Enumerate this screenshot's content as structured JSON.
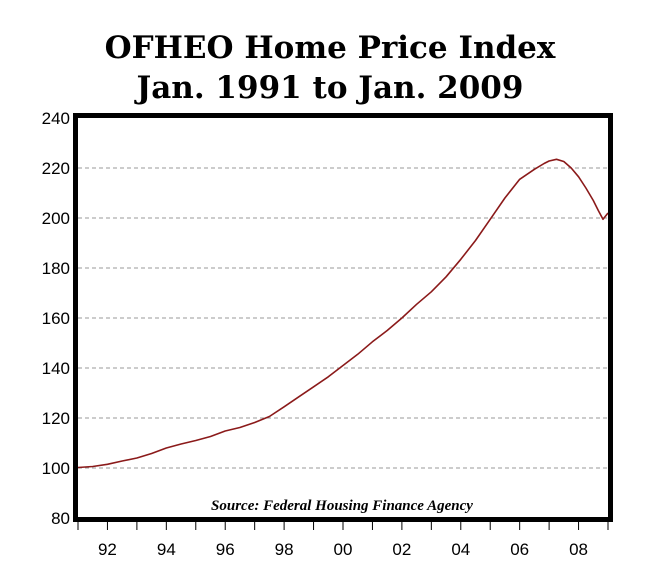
{
  "chart_data": {
    "type": "line",
    "title_lines": [
      "OFHEO Home Price Index",
      "Jan. 1991 to Jan. 2009"
    ],
    "annotation": "Source: Federal Housing Finance Agency",
    "xlim": [
      1991.0,
      2009.0
    ],
    "ylim": [
      80,
      240
    ],
    "y_ticks": [
      80,
      100,
      120,
      140,
      160,
      180,
      200,
      220,
      240
    ],
    "x_ticks": [
      {
        "value": 1992,
        "label": "92"
      },
      {
        "value": 1994,
        "label": "94"
      },
      {
        "value": 1996,
        "label": "96"
      },
      {
        "value": 1998,
        "label": "98"
      },
      {
        "value": 2000,
        "label": "00"
      },
      {
        "value": 2002,
        "label": "02"
      },
      {
        "value": 2004,
        "label": "04"
      },
      {
        "value": 2006,
        "label": "06"
      },
      {
        "value": 2008,
        "label": "08"
      }
    ],
    "grid": true,
    "series": [
      {
        "color": "#8b1a1a",
        "x": [
          1991.0,
          1991.5,
          1992.0,
          1992.5,
          1993.0,
          1993.5,
          1994.0,
          1994.5,
          1995.0,
          1995.5,
          1996.0,
          1996.5,
          1997.0,
          1997.5,
          1998.0,
          1998.5,
          1999.0,
          1999.5,
          2000.0,
          2000.5,
          2001.0,
          2001.5,
          2002.0,
          2002.5,
          2003.0,
          2003.5,
          2004.0,
          2004.5,
          2005.0,
          2005.5,
          2006.0,
          2006.5,
          2006.83,
          2007.0,
          2007.25,
          2007.5,
          2007.75,
          2008.0,
          2008.25,
          2008.5,
          2008.67,
          2008.83,
          2009.0
        ],
        "y": [
          100.2,
          100.6,
          101.5,
          102.8,
          104.0,
          105.8,
          108.0,
          109.6,
          111.0,
          112.6,
          114.8,
          116.2,
          118.2,
          120.6,
          124.5,
          128.5,
          132.5,
          136.5,
          141.0,
          145.5,
          150.5,
          155.0,
          160.0,
          165.5,
          170.5,
          176.5,
          183.5,
          191.0,
          199.5,
          208.0,
          215.5,
          219.5,
          221.8,
          222.8,
          223.5,
          222.6,
          220.0,
          216.5,
          212.0,
          207.0,
          203.0,
          199.5,
          202.0
        ]
      }
    ]
  }
}
